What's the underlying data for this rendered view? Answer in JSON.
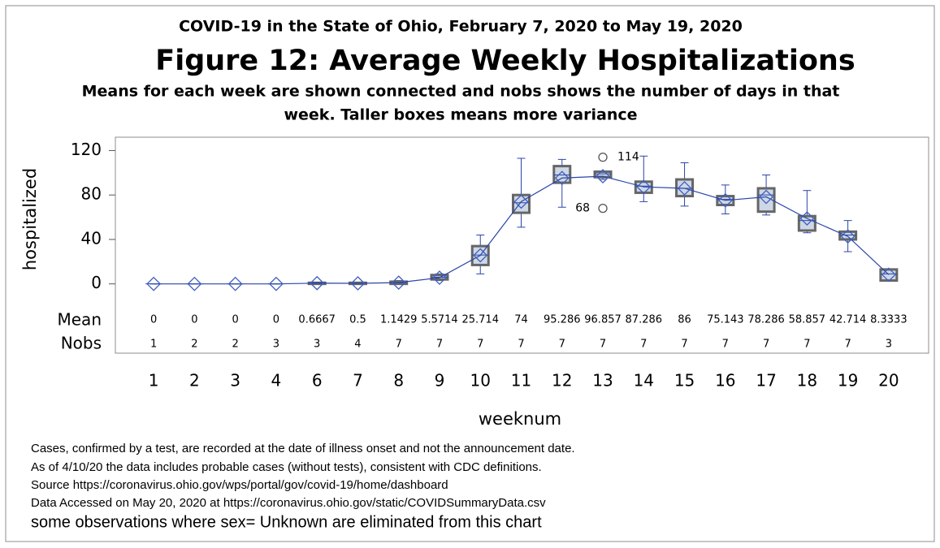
{
  "chart_data": {
    "type": "box",
    "supertitle": "COVID-19 in the State of Ohio, February 7, 2020 to May 19, 2020",
    "title": "Figure 12: Average Weekly Hospitalizations",
    "subtitle": [
      "Means for each week are shown connected and nobs shows the number of days in that",
      "week. Taller boxes means more variance"
    ],
    "x_label": "weeknum",
    "y_label": "hospitalized",
    "categories": [
      "1",
      "2",
      "3",
      "4",
      "6",
      "7",
      "8",
      "9",
      "10",
      "11",
      "12",
      "13",
      "14",
      "15",
      "16",
      "17",
      "18",
      "19",
      "20"
    ],
    "boxes": [
      {
        "min": 0,
        "q1": 0,
        "median": 0,
        "q3": 0,
        "max": 0
      },
      {
        "min": 0,
        "q1": 0,
        "median": 0,
        "q3": 0,
        "max": 0
      },
      {
        "min": 0,
        "q1": 0,
        "median": 0,
        "q3": 0,
        "max": 0
      },
      {
        "min": 0,
        "q1": 0,
        "median": 0,
        "q3": 0,
        "max": 0
      },
      {
        "min": 0,
        "q1": 0,
        "median": 1,
        "q3": 1,
        "max": 1
      },
      {
        "min": 0,
        "q1": 0,
        "median": 0.5,
        "q3": 1,
        "max": 1
      },
      {
        "min": 0,
        "q1": 0,
        "median": 1,
        "q3": 2,
        "max": 3
      },
      {
        "min": 3,
        "q1": 4,
        "median": 6,
        "q3": 8,
        "max": 9
      },
      {
        "min": 9,
        "q1": 17,
        "median": 26,
        "q3": 34,
        "max": 44
      },
      {
        "min": 51,
        "q1": 64,
        "median": 73,
        "q3": 80,
        "max": 113
      },
      {
        "min": 69,
        "q1": 91,
        "median": 98,
        "q3": 106,
        "max": 112
      },
      {
        "min": 94,
        "q1": 96,
        "median": 99,
        "q3": 101,
        "max": 101
      },
      {
        "min": 74,
        "q1": 82,
        "median": 88,
        "q3": 92,
        "max": 115
      },
      {
        "min": 70,
        "q1": 79,
        "median": 86,
        "q3": 94,
        "max": 109
      },
      {
        "min": 63,
        "q1": 71,
        "median": 76,
        "q3": 79,
        "max": 89
      },
      {
        "min": 62,
        "q1": 65,
        "median": 80,
        "q3": 86,
        "max": 98
      },
      {
        "min": 46,
        "q1": 48,
        "median": 57,
        "q3": 61,
        "max": 84
      },
      {
        "min": 29,
        "q1": 40,
        "median": 44,
        "q3": 47,
        "max": 57
      },
      {
        "min": 3,
        "q1": 3,
        "median": 9,
        "q3": 13,
        "max": 13
      }
    ],
    "outliers": [
      {
        "category": "13",
        "value": 114
      },
      {
        "category": "13",
        "value": 68
      }
    ],
    "table_labels": [
      "Mean",
      "Nobs"
    ],
    "means": [
      0,
      0,
      0,
      0,
      0.6667,
      0.5,
      1.1429,
      5.5714,
      25.714,
      74,
      95.286,
      96.857,
      87.286,
      86,
      75.143,
      78.286,
      58.857,
      42.714,
      8.3333
    ],
    "nobs": [
      1,
      2,
      2,
      3,
      3,
      4,
      7,
      7,
      7,
      7,
      7,
      7,
      7,
      7,
      7,
      7,
      7,
      7,
      3
    ],
    "ylim": [
      -9,
      132
    ],
    "yticks": [
      0,
      40,
      80,
      120
    ],
    "grid": false,
    "box_color": "#cdd7e6",
    "line_color": "#2a45a8",
    "title_color": "#15158a",
    "footnotes": [
      "Cases, confirmed by a test, are recorded at the date of illness onset and not the announcement date.",
      "As of 4/10/20 the data includes probable cases (without tests), consistent with CDC definitions.",
      "Source https://coronavirus.ohio.gov/wps/portal/gov/covid-19/home/dashboard",
      "Data Accessed on May 20, 2020 at https://coronavirus.ohio.gov/static/COVIDSummaryData.csv",
      "some observations where sex= Unknown are eliminated from this chart"
    ]
  }
}
